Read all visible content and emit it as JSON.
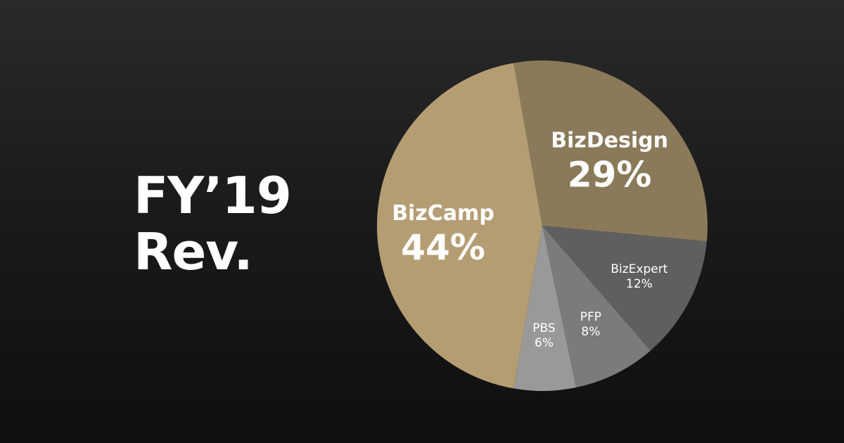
{
  "title": {
    "line1": "FY’19",
    "line2": "Rev."
  },
  "chart_data": {
    "type": "pie",
    "title": "FY’19 Rev.",
    "slices": [
      {
        "label": "BizDesign",
        "value": 29,
        "display": "29%",
        "color": "#8a7a5a",
        "emphasis": "large"
      },
      {
        "label": "BizExpert",
        "value": 12,
        "display": "12%",
        "color": "#5f5f5f",
        "emphasis": "small"
      },
      {
        "label": "PFP",
        "value": 8,
        "display": "8%",
        "color": "#7b7b7b",
        "emphasis": "small"
      },
      {
        "label": "PBS",
        "value": 6,
        "display": "6%",
        "color": "#999999",
        "emphasis": "small"
      },
      {
        "label": "BizCamp",
        "value": 44,
        "display": "44%",
        "color": "#b59d73",
        "emphasis": "large"
      }
    ],
    "legend": "none"
  }
}
